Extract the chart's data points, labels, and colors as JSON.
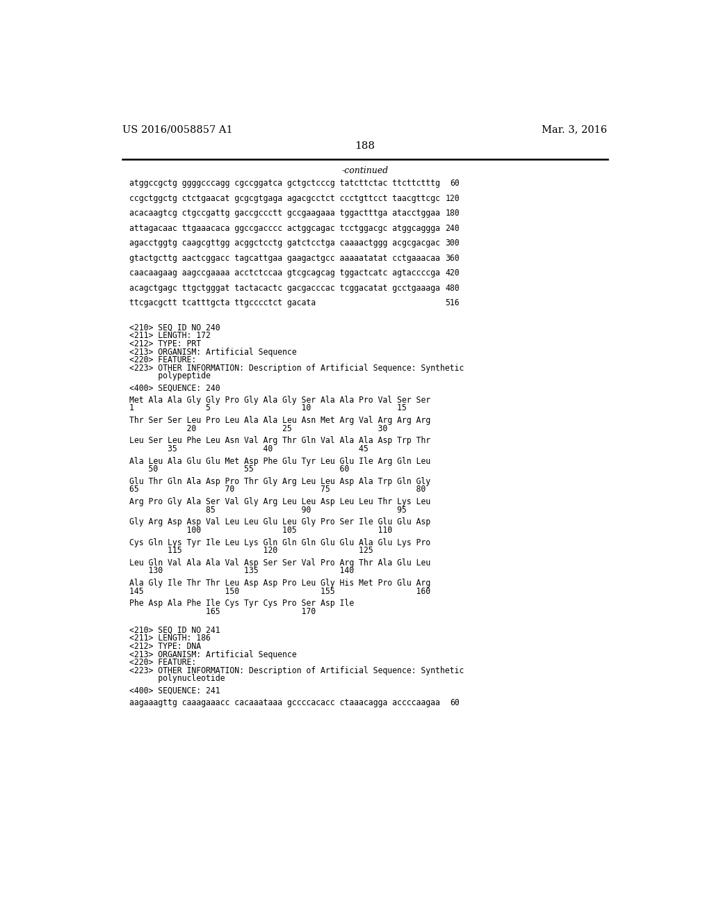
{
  "header_left": "US 2016/0058857 A1",
  "header_right": "Mar. 3, 2016",
  "page_number": "188",
  "continued_label": "-continued",
  "background_color": "#ffffff",
  "text_color": "#000000",
  "sequence_lines": [
    [
      "atggccgctg ggggcccagg cgccggatca gctgctcccg tatcttctac ttcttctttg",
      "60"
    ],
    [
      "ccgctggctg ctctgaacat gcgcgtgaga agacgcctct ccctgttcct taacgttcgc",
      "120"
    ],
    [
      "acacaagtcg ctgccgattg gaccgccctt gccgaagaaa tggactttga atacctggaa",
      "180"
    ],
    [
      "attagacaac ttgaaacaca ggccgacccc actggcagac tcctggacgc atggcaggga",
      "240"
    ],
    [
      "agacctggtg caagcgttgg acggctcctg gatctcctga caaaactggg acgcgacgac",
      "300"
    ],
    [
      "gtactgcttg aactcggacc tagcattgaa gaagactgcc aaaaatatat cctgaaacaa",
      "360"
    ],
    [
      "caacaagaag aagccgaaaa acctctccaa gtcgcagcag tggactcatc agtaccccga",
      "420"
    ],
    [
      "acagctgagc ttgctgggat tactacactc gacgacccac tcggacatat gcctgaaaga",
      "480"
    ],
    [
      "ttcgacgctt tcatttgcta ttgcccctct gacata",
      "516"
    ]
  ],
  "seq240_header": [
    "<210> SEQ ID NO 240",
    "<211> LENGTH: 172",
    "<212> TYPE: PRT",
    "<213> ORGANISM: Artificial Sequence",
    "<220> FEATURE:",
    "<223> OTHER INFORMATION: Description of Artificial Sequence: Synthetic",
    "      polypeptide"
  ],
  "seq240_label": "<400> SEQUENCE: 240",
  "seq240_lines": [
    "Met Ala Ala Gly Gly Pro Gly Ala Gly Ser Ala Ala Pro Val Ser Ser",
    "1               5                   10                  15",
    "",
    "Thr Ser Ser Leu Pro Leu Ala Ala Leu Asn Met Arg Val Arg Arg Arg",
    "            20                  25                  30",
    "",
    "Leu Ser Leu Phe Leu Asn Val Arg Thr Gln Val Ala Ala Asp Trp Thr",
    "        35                  40                  45",
    "",
    "Ala Leu Ala Glu Glu Met Asp Phe Glu Tyr Leu Glu Ile Arg Gln Leu",
    "    50                  55                  60",
    "",
    "Glu Thr Gln Ala Asp Pro Thr Gly Arg Leu Leu Asp Ala Trp Gln Gly",
    "65                  70                  75                  80",
    "",
    "Arg Pro Gly Ala Ser Val Gly Arg Leu Leu Asp Leu Leu Thr Lys Leu",
    "                85                  90                  95",
    "",
    "Gly Arg Asp Asp Val Leu Leu Glu Leu Gly Pro Ser Ile Glu Glu Asp",
    "            100                 105                 110",
    "",
    "Cys Gln Lys Tyr Ile Leu Lys Gln Gln Gln Glu Glu Ala Glu Lys Pro",
    "        115                 120                 125",
    "",
    "Leu Gln Val Ala Ala Val Asp Ser Ser Val Pro Arg Thr Ala Glu Leu",
    "    130                 135                 140",
    "",
    "Ala Gly Ile Thr Thr Leu Asp Asp Pro Leu Gly His Met Pro Glu Arg",
    "145                 150                 155                 160",
    "",
    "Phe Asp Ala Phe Ile Cys Tyr Cys Pro Ser Asp Ile",
    "                165                 170"
  ],
  "seq241_header": [
    "<210> SEQ ID NO 241",
    "<211> LENGTH: 186",
    "<212> TYPE: DNA",
    "<213> ORGANISM: Artificial Sequence",
    "<220> FEATURE:",
    "<223> OTHER INFORMATION: Description of Artificial Sequence: Synthetic",
    "      polynucleotide"
  ],
  "seq241_label": "<400> SEQUENCE: 241",
  "seq241_lines": [
    [
      "aagaaagttg caaagaaacc cacaaataaa gccccacacc ctaaacagga accccaagaa",
      "60"
    ]
  ],
  "italic_line_indices": [
    20,
    28
  ],
  "italic_word": "Cys"
}
